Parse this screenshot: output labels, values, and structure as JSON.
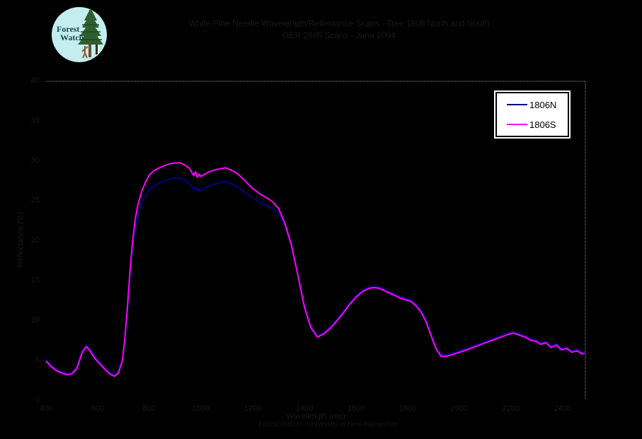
{
  "header": {
    "title_line1": "White Pine Needle Wavelength/Reflectance Scans - Tree 1806 North and South",
    "title_line2": "GER 2600 Scans - June 2004",
    "logo": {
      "line1": "Forest",
      "line2": "Watch"
    }
  },
  "legend": {
    "items": [
      {
        "label": "1806N",
        "color": "#000080"
      },
      {
        "label": "1806S",
        "color": "#ff00ff"
      }
    ]
  },
  "footer": {
    "credit": "Forest Watch - University of New Hampshire"
  },
  "colors": {
    "background": "#000000",
    "plot_border": "#9a9a9a",
    "axis_text": "#191920",
    "series_north": "#000080",
    "series_south": "#ff00ff",
    "legend_bg": "#ffffff",
    "logo_circle": "#c4edef",
    "logo_tree": "#2f5e2f",
    "logo_trunk": "#7a4a26",
    "logo_text": "#174a42"
  },
  "chart_data": {
    "type": "line",
    "title": "White Pine Needle Wavelength/Reflectance Scans - Tree 1806 North and South",
    "subtitle": "GER 2600 Scans - June 2004",
    "xlabel": "Wavelength (nm)",
    "ylabel": "Reflectance (%)",
    "xlim": [
      400,
      2500
    ],
    "ylim": [
      0,
      40
    ],
    "x_ticks": [
      400,
      600,
      800,
      1000,
      1200,
      1400,
      1600,
      1800,
      2000,
      2200,
      2400
    ],
    "y_ticks": [
      0,
      5,
      10,
      15,
      20,
      25,
      30,
      35,
      40
    ],
    "grid": false,
    "legend_position": "top-right",
    "x": [
      400,
      420,
      440,
      460,
      480,
      500,
      520,
      540,
      556,
      570,
      590,
      610,
      630,
      650,
      665,
      680,
      695,
      705,
      715,
      725,
      735,
      745,
      755,
      770,
      785,
      800,
      820,
      840,
      860,
      880,
      900,
      920,
      940,
      955,
      965,
      972,
      979,
      986,
      993,
      1000,
      1010,
      1025,
      1040,
      1060,
      1080,
      1095,
      1110,
      1130,
      1150,
      1175,
      1200,
      1225,
      1250,
      1275,
      1300,
      1325,
      1350,
      1375,
      1400,
      1425,
      1450,
      1475,
      1500,
      1525,
      1550,
      1575,
      1600,
      1625,
      1650,
      1670,
      1690,
      1710,
      1730,
      1750,
      1770,
      1790,
      1810,
      1830,
      1850,
      1870,
      1890,
      1910,
      1930,
      1950,
      1970,
      1990,
      2010,
      2035,
      2060,
      2085,
      2110,
      2135,
      2160,
      2185,
      2205,
      2220,
      2235,
      2255,
      2275,
      2295,
      2315,
      2335,
      2355,
      2375,
      2395,
      2415,
      2435,
      2455,
      2475,
      2485
    ],
    "series": [
      {
        "name": "1806N",
        "color": "#000080",
        "values": [
          5.0,
          4.3,
          3.8,
          3.5,
          3.3,
          3.4,
          4.1,
          6.1,
          6.8,
          6.3,
          5.3,
          4.6,
          3.9,
          3.3,
          3.1,
          3.5,
          4.9,
          7.4,
          11.2,
          15.4,
          19.0,
          21.4,
          23.0,
          24.5,
          25.5,
          26.3,
          26.8,
          27.1,
          27.4,
          27.6,
          27.7,
          27.7,
          27.4,
          27.0,
          26.6,
          26.2,
          26.7,
          26.0,
          26.4,
          26.1,
          26.3,
          26.6,
          26.8,
          27.0,
          27.2,
          27.3,
          27.1,
          26.8,
          26.4,
          25.8,
          25.2,
          24.7,
          24.3,
          23.9,
          23.3,
          21.7,
          19.2,
          15.6,
          11.8,
          9.2,
          8.0,
          8.4,
          9.1,
          10.0,
          11.0,
          12.1,
          13.0,
          13.7,
          14.1,
          14.2,
          14.1,
          13.8,
          13.5,
          13.2,
          12.9,
          12.7,
          12.5,
          12.0,
          11.2,
          10.0,
          8.2,
          6.5,
          5.6,
          5.6,
          5.8,
          6.0,
          6.2,
          6.5,
          6.8,
          7.1,
          7.4,
          7.7,
          8.0,
          8.3,
          8.5,
          8.4,
          8.2,
          8.0,
          7.6,
          7.5,
          7.1,
          7.3,
          6.7,
          7.0,
          6.4,
          6.6,
          6.1,
          6.3,
          5.9,
          6.0
        ]
      },
      {
        "name": "1806S",
        "color": "#ff00ff",
        "values": [
          4.8,
          4.1,
          3.6,
          3.3,
          3.1,
          3.2,
          3.9,
          5.9,
          6.6,
          6.1,
          5.1,
          4.4,
          3.7,
          3.1,
          2.9,
          3.3,
          4.8,
          7.5,
          11.5,
          16.0,
          19.8,
          22.5,
          24.3,
          26.0,
          27.2,
          28.1,
          28.7,
          29.0,
          29.3,
          29.5,
          29.6,
          29.6,
          29.3,
          28.9,
          28.4,
          28.0,
          28.5,
          27.8,
          28.2,
          27.9,
          28.1,
          28.4,
          28.6,
          28.8,
          28.9,
          29.0,
          28.8,
          28.5,
          28.0,
          27.2,
          26.4,
          25.8,
          25.3,
          24.8,
          23.9,
          22.0,
          19.3,
          15.5,
          11.6,
          9.0,
          7.8,
          8.2,
          8.9,
          9.8,
          10.8,
          11.9,
          12.8,
          13.5,
          13.9,
          14.0,
          13.9,
          13.6,
          13.3,
          13.0,
          12.7,
          12.5,
          12.3,
          11.8,
          11.0,
          9.8,
          8.0,
          6.3,
          5.4,
          5.4,
          5.6,
          5.8,
          6.0,
          6.3,
          6.6,
          6.9,
          7.2,
          7.5,
          7.8,
          8.1,
          8.3,
          8.2,
          8.0,
          7.8,
          7.4,
          7.3,
          6.9,
          7.1,
          6.5,
          6.8,
          6.2,
          6.4,
          5.9,
          6.1,
          5.7,
          5.8
        ]
      }
    ]
  }
}
